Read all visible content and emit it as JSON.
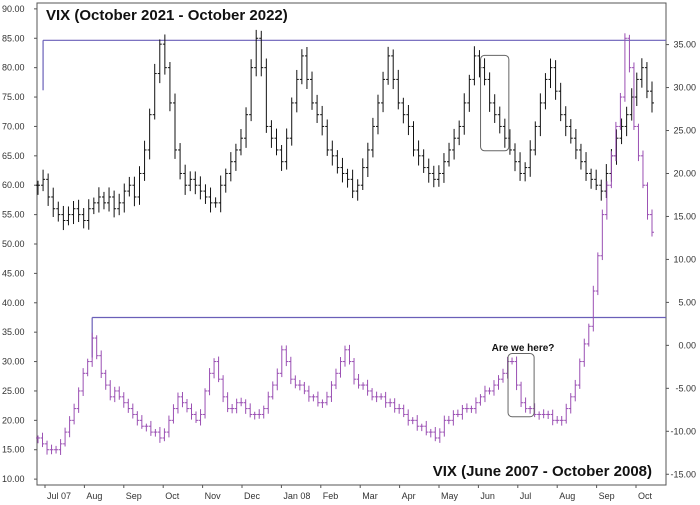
{
  "chart_data": [
    {
      "type": "ohlc-bars",
      "title": "VIX (October 2021 - October 2022)",
      "axis": "right",
      "y_ticks": [
        -15,
        -10,
        -5,
        0,
        5,
        10,
        15,
        20,
        25,
        30,
        35
      ],
      "ylim": [
        -16.25,
        39.84
      ],
      "color": "#111111",
      "resistance_level": 35.5,
      "closes": [
        60,
        61,
        58,
        56,
        55,
        54,
        55,
        56,
        55,
        54,
        56,
        57,
        58,
        57,
        58,
        56,
        57,
        59,
        60,
        58,
        62,
        66,
        72,
        79,
        84,
        80,
        74,
        66,
        62,
        60,
        61,
        60,
        59,
        58,
        57,
        57,
        60,
        62,
        64,
        66,
        68,
        72,
        80,
        85,
        80,
        70,
        68,
        66,
        64,
        68,
        74,
        78,
        82,
        78,
        74,
        72,
        70,
        66,
        65,
        63,
        62,
        61,
        59,
        60,
        63,
        66,
        70,
        74,
        78,
        82,
        78,
        74,
        72,
        70,
        66,
        65,
        63,
        62,
        61,
        62,
        64,
        66,
        68,
        70,
        74,
        78,
        82,
        80,
        78,
        74,
        72,
        70,
        68,
        66,
        64,
        62,
        63,
        66,
        70,
        74,
        78,
        80,
        76,
        72,
        70,
        68,
        66,
        64,
        62,
        61,
        60,
        59,
        62,
        65,
        68,
        70,
        72,
        75,
        78,
        80,
        76,
        74
      ],
      "callout": "Jun"
    },
    {
      "type": "ohlc-bars",
      "title": "VIX (June 2007 - October 2008)",
      "axis": "left",
      "y_ticks": [
        10,
        15,
        20,
        25,
        30,
        35,
        40,
        45,
        50,
        55,
        60,
        65,
        70,
        75,
        80,
        85,
        90
      ],
      "ylim": [
        9,
        91
      ],
      "color": "#9a4fb3",
      "resistance_level": 37.5,
      "x_tick_labels": [
        "Jul 07",
        "Aug",
        "Sep",
        "Oct",
        "Nov",
        "Dec",
        "Jan 08",
        "Feb",
        "Mar",
        "Apr",
        "May",
        "Jun",
        "Jul",
        "Aug",
        "Sep",
        "Oct"
      ],
      "closes": [
        17,
        16,
        15,
        15,
        15,
        16,
        18,
        20,
        22,
        25,
        28,
        30,
        34,
        31,
        28,
        26,
        24,
        25,
        24,
        23,
        22,
        21,
        20,
        19,
        19,
        18,
        18,
        17,
        18,
        20,
        22,
        24,
        23,
        22,
        21,
        20,
        21,
        25,
        28,
        30,
        27,
        24,
        22,
        22,
        23,
        23,
        22,
        21,
        21,
        21,
        22,
        24,
        26,
        28,
        32,
        30,
        27,
        26,
        26,
        25,
        24,
        24,
        23,
        23,
        24,
        26,
        28,
        30,
        32,
        30,
        27,
        26,
        26,
        25,
        24,
        24,
        24,
        23,
        23,
        22,
        22,
        21,
        20,
        20,
        19,
        19,
        18,
        18,
        17,
        18,
        20,
        20,
        21,
        21,
        22,
        22,
        22,
        23,
        24,
        25,
        25,
        26,
        27,
        28,
        30,
        30,
        26,
        23,
        22,
        22,
        21,
        21,
        21,
        21,
        20,
        20,
        20,
        22,
        24,
        26,
        30,
        33,
        36,
        42,
        48,
        55,
        60,
        65,
        70,
        75,
        85,
        80,
        70,
        65,
        60,
        55,
        52
      ],
      "annotation": "Are we here?",
      "callout": "Jul"
    }
  ]
}
